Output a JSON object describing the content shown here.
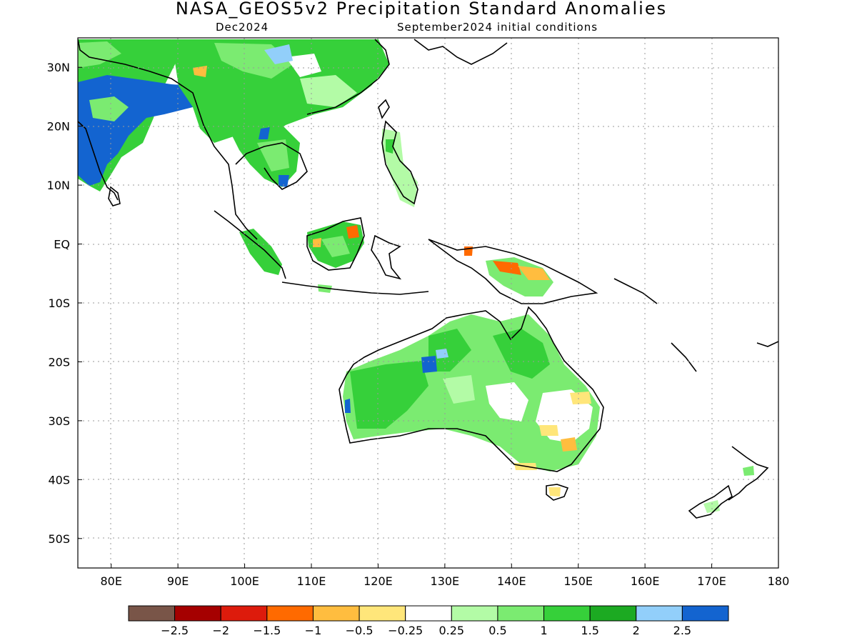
{
  "title": "NASA_GEOS5v2 Precipitation Standard Anomalies",
  "subtitle_left": "Dec2024",
  "subtitle_right": "September2024 initial conditions",
  "map": {
    "lon_ticks": [
      "80E",
      "90E",
      "100E",
      "110E",
      "120E",
      "130E",
      "140E",
      "150E",
      "160E",
      "170E",
      "180"
    ],
    "lat_ticks": [
      "30N",
      "20N",
      "10N",
      "EQ",
      "10S",
      "20S",
      "30S",
      "40S",
      "50S"
    ],
    "extent": {
      "lon": [
        75,
        180
      ],
      "lat": [
        -55,
        35
      ]
    }
  },
  "legend": {
    "colors": [
      "#795548",
      "#a50000",
      "#dd1b0c",
      "#ff6a00",
      "#ffbd3f",
      "#ffe67a",
      "#ffffff",
      "#b3fba6",
      "#7beb71",
      "#36d03a",
      "#1caa22",
      "#92cffa",
      "#1364d0"
    ],
    "labels": [
      "−2.5",
      "−2",
      "−1.5",
      "−1",
      "−0.5",
      "−0.25",
      "0.25",
      "0.5",
      "1",
      "1.5",
      "2",
      "2.5"
    ]
  }
}
